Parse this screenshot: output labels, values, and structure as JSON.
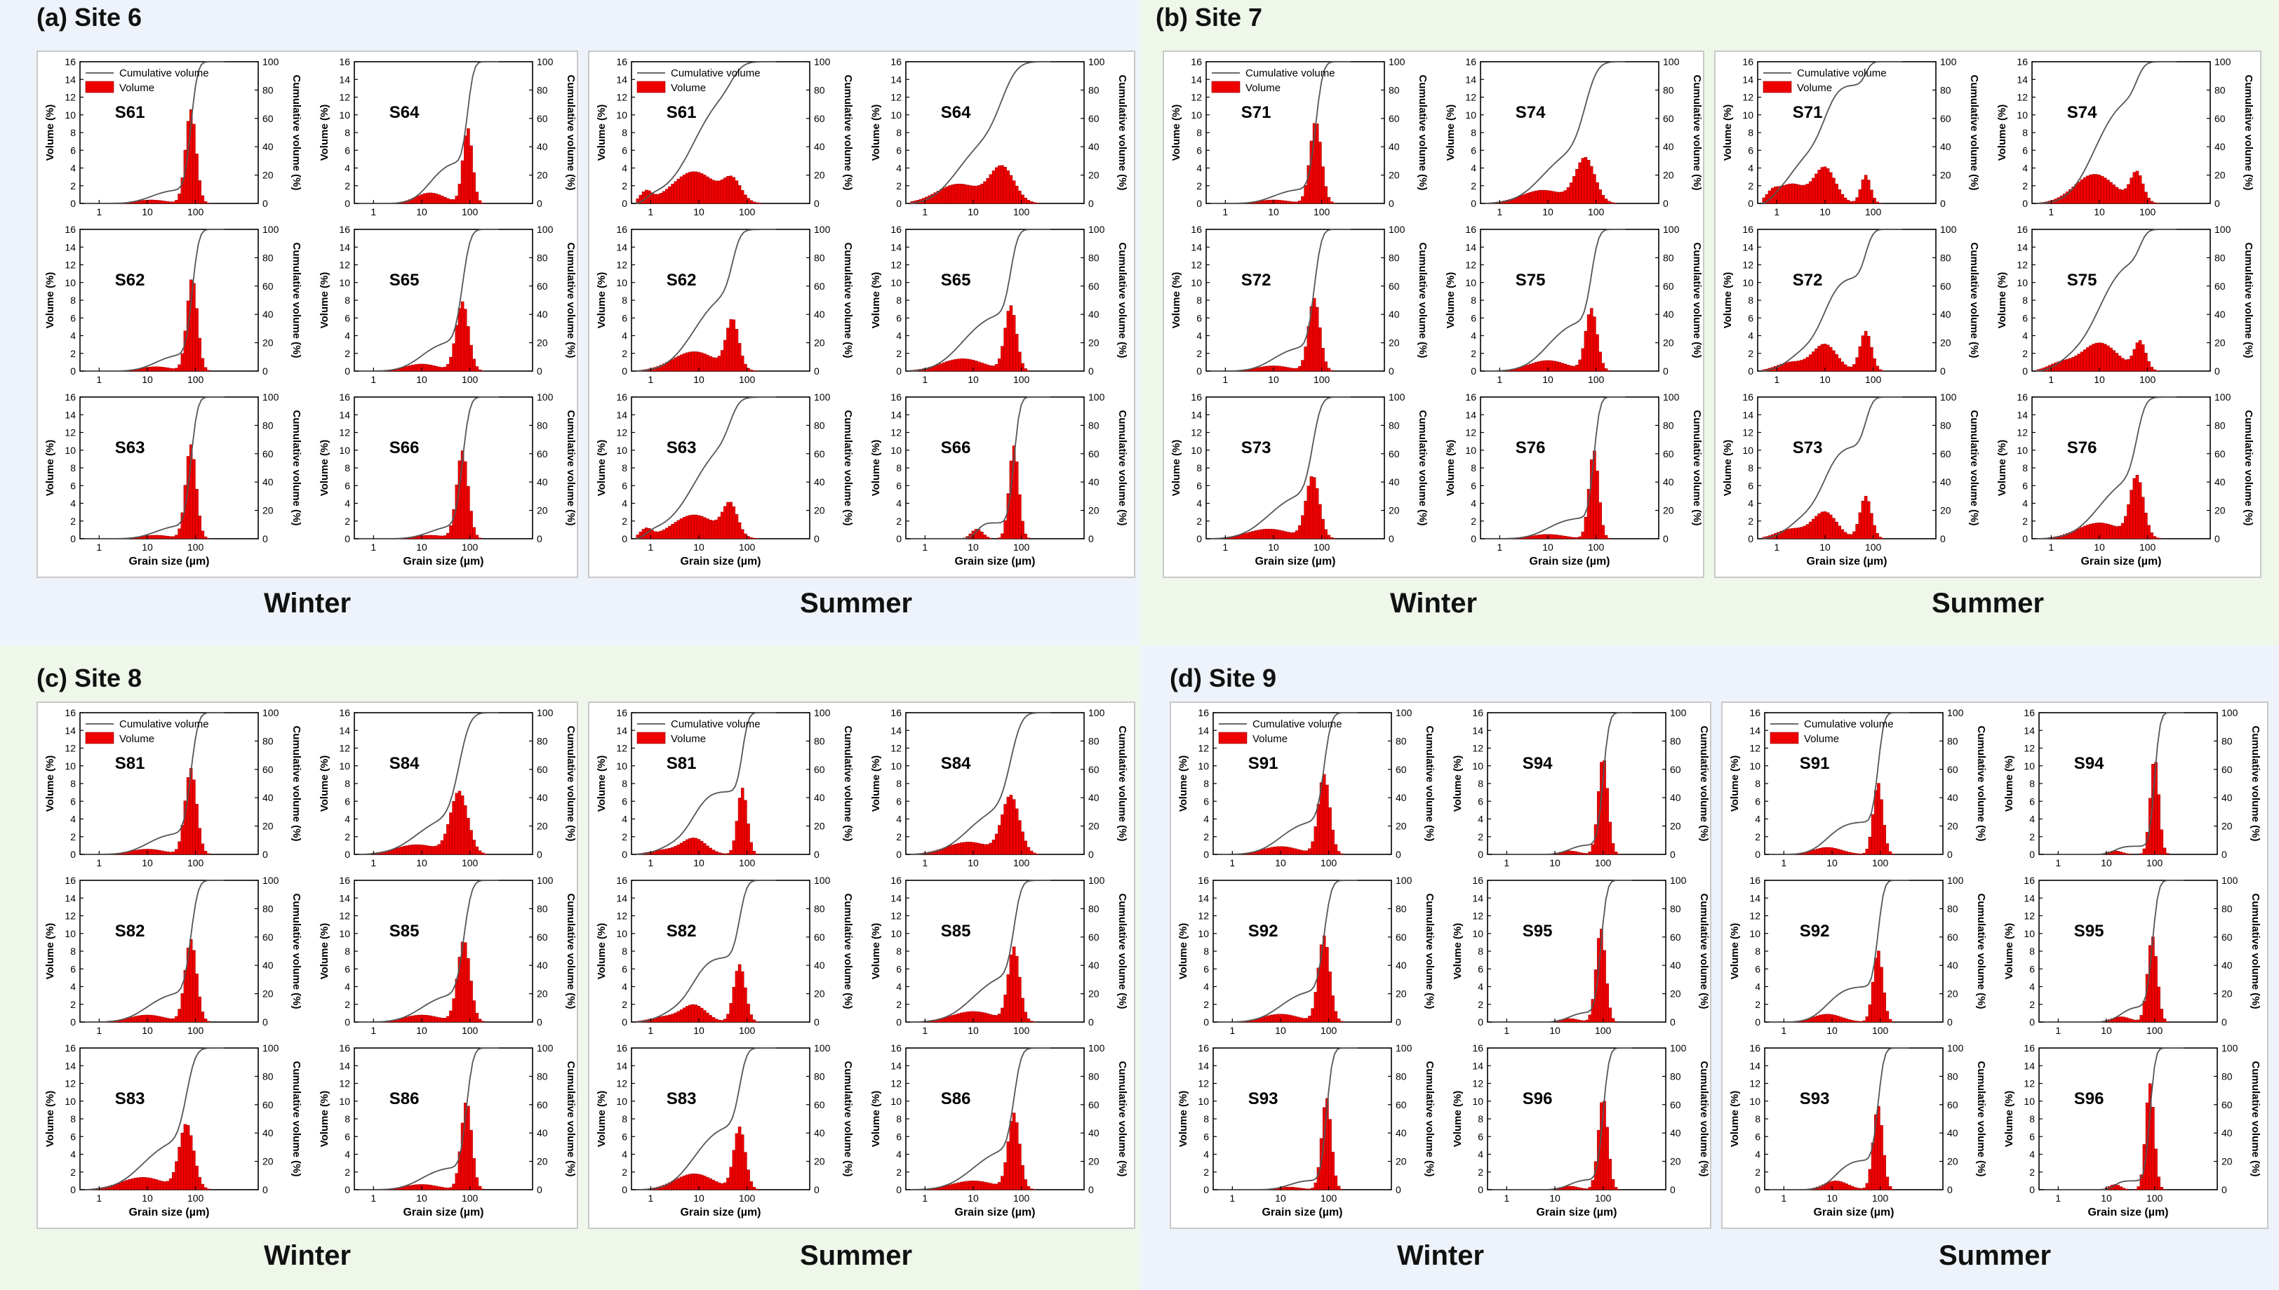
{
  "colors": {
    "bar": "#ee0000",
    "line": "#555555",
    "bg_blue": "#eef3fb",
    "bg_green": "#eff7ea"
  },
  "common": {
    "ylabel": "Volume (%)",
    "y2label": "Cumulative volume (%)",
    "xlabel": "Grain size (µm)",
    "legend_line": "Cumulative volume",
    "legend_bar": "Volume",
    "y_ticks": [
      "0",
      "2",
      "4",
      "6",
      "8",
      "10",
      "12",
      "14",
      "16"
    ],
    "y2_ticks": [
      "0",
      "20",
      "40",
      "60",
      "80",
      "100"
    ],
    "x_ticks": [
      "1",
      "10",
      "100"
    ]
  },
  "quadrants": [
    {
      "title": "(a) Site 6",
      "winter_label": "Winter",
      "summer_label": "Summer"
    },
    {
      "title": "(b) Site 7",
      "winter_label": "Winter",
      "summer_label": "Summer"
    },
    {
      "title": "(c) Site 8",
      "winter_label": "Winter",
      "summer_label": "Summer"
    },
    {
      "title": "(d) Site 9",
      "winter_label": "Winter",
      "summer_label": "Summer"
    }
  ],
  "chart_data": {
    "type": "bar",
    "description_x": "log10 grain size, 0.4 to 2000 µm",
    "xlim": [
      0.4,
      2000
    ],
    "ylim": [
      0,
      16
    ],
    "y2lim": [
      0,
      100
    ],
    "series_note": "each panel: Volume (bars, %) and Cumulative volume (line, %), modes in µm",
    "panels": [
      {
        "site": "6",
        "season": "winter",
        "label": "S61",
        "modes": [
          {
            "c": 80,
            "w": 0.11,
            "h": 10.6
          },
          {
            "c": 12,
            "w": 0.32,
            "h": 0.4
          }
        ]
      },
      {
        "site": "6",
        "season": "winter",
        "label": "S64",
        "modes": [
          {
            "c": 90,
            "w": 0.1,
            "h": 8.5
          },
          {
            "c": 15,
            "w": 0.3,
            "h": 1.2
          }
        ]
      },
      {
        "site": "6",
        "season": "winter",
        "label": "S62",
        "modes": [
          {
            "c": 85,
            "w": 0.11,
            "h": 10.5
          },
          {
            "c": 15,
            "w": 0.32,
            "h": 0.5
          }
        ]
      },
      {
        "site": "6",
        "season": "winter",
        "label": "S65",
        "modes": [
          {
            "c": 70,
            "w": 0.13,
            "h": 7.8
          },
          {
            "c": 10,
            "w": 0.35,
            "h": 0.8
          }
        ]
      },
      {
        "site": "6",
        "season": "winter",
        "label": "S63",
        "modes": [
          {
            "c": 80,
            "w": 0.11,
            "h": 10.6
          },
          {
            "c": 15,
            "w": 0.32,
            "h": 0.4
          }
        ]
      },
      {
        "site": "6",
        "season": "winter",
        "label": "S66",
        "modes": [
          {
            "c": 70,
            "w": 0.12,
            "h": 9.9
          },
          {
            "c": 15,
            "w": 0.32,
            "h": 0.4
          }
        ]
      },
      {
        "site": "6",
        "season": "summer",
        "label": "S61",
        "modes": [
          {
            "c": 8,
            "w": 0.45,
            "h": 3.6
          },
          {
            "c": 50,
            "w": 0.18,
            "h": 2.3
          },
          {
            "c": 0.8,
            "w": 0.12,
            "h": 1.2
          }
        ]
      },
      {
        "site": "6",
        "season": "summer",
        "label": "S64",
        "modes": [
          {
            "c": 40,
            "w": 0.25,
            "h": 4.0
          },
          {
            "c": 5,
            "w": 0.45,
            "h": 2.2
          }
        ]
      },
      {
        "site": "6",
        "season": "summer",
        "label": "S62",
        "modes": [
          {
            "c": 50,
            "w": 0.13,
            "h": 5.5
          },
          {
            "c": 8,
            "w": 0.45,
            "h": 2.2
          }
        ]
      },
      {
        "site": "6",
        "season": "summer",
        "label": "S65",
        "modes": [
          {
            "c": 60,
            "w": 0.12,
            "h": 7.3
          },
          {
            "c": 6,
            "w": 0.45,
            "h": 1.4
          }
        ]
      },
      {
        "site": "6",
        "season": "summer",
        "label": "S63",
        "modes": [
          {
            "c": 45,
            "w": 0.15,
            "h": 3.5
          },
          {
            "c": 8,
            "w": 0.45,
            "h": 2.7
          },
          {
            "c": 0.8,
            "w": 0.12,
            "h": 1.0
          }
        ]
      },
      {
        "site": "6",
        "season": "summer",
        "label": "S66",
        "modes": [
          {
            "c": 70,
            "w": 0.1,
            "h": 10.5
          },
          {
            "c": 12,
            "w": 0.12,
            "h": 1.1
          }
        ]
      },
      {
        "site": "7",
        "season": "winter",
        "label": "S71",
        "modes": [
          {
            "c": 75,
            "w": 0.12,
            "h": 9.3
          },
          {
            "c": 10,
            "w": 0.32,
            "h": 0.4
          }
        ]
      },
      {
        "site": "7",
        "season": "winter",
        "label": "S74",
        "modes": [
          {
            "c": 60,
            "w": 0.2,
            "h": 5.0
          },
          {
            "c": 8,
            "w": 0.45,
            "h": 1.5
          }
        ]
      },
      {
        "site": "7",
        "season": "winter",
        "label": "S72",
        "modes": [
          {
            "c": 70,
            "w": 0.12,
            "h": 8.2
          },
          {
            "c": 10,
            "w": 0.35,
            "h": 0.6
          }
        ]
      },
      {
        "site": "7",
        "season": "winter",
        "label": "S75",
        "modes": [
          {
            "c": 80,
            "w": 0.12,
            "h": 7.0
          },
          {
            "c": 10,
            "w": 0.4,
            "h": 1.2
          }
        ]
      },
      {
        "site": "7",
        "season": "winter",
        "label": "S73",
        "modes": [
          {
            "c": 65,
            "w": 0.14,
            "h": 7.0
          },
          {
            "c": 8,
            "w": 0.45,
            "h": 1.1
          }
        ]
      },
      {
        "site": "7",
        "season": "winter",
        "label": "S76",
        "modes": [
          {
            "c": 90,
            "w": 0.1,
            "h": 10.0
          },
          {
            "c": 10,
            "w": 0.35,
            "h": 0.5
          }
        ]
      },
      {
        "site": "7",
        "season": "summer",
        "label": "S71",
        "modes": [
          {
            "c": 10,
            "w": 0.22,
            "h": 4.0
          },
          {
            "c": 70,
            "w": 0.1,
            "h": 3.2
          },
          {
            "c": 2,
            "w": 0.3,
            "h": 2.2
          },
          {
            "c": 0.8,
            "w": 0.12,
            "h": 0.8
          }
        ]
      },
      {
        "site": "7",
        "season": "summer",
        "label": "S74",
        "modes": [
          {
            "c": 8,
            "w": 0.42,
            "h": 3.3
          },
          {
            "c": 60,
            "w": 0.13,
            "h": 3.3
          }
        ]
      },
      {
        "site": "7",
        "season": "summer",
        "label": "S72",
        "modes": [
          {
            "c": 10,
            "w": 0.25,
            "h": 3.0
          },
          {
            "c": 70,
            "w": 0.12,
            "h": 4.5
          },
          {
            "c": 2,
            "w": 0.3,
            "h": 1.0
          }
        ]
      },
      {
        "site": "7",
        "season": "summer",
        "label": "S75",
        "modes": [
          {
            "c": 10,
            "w": 0.38,
            "h": 3.2
          },
          {
            "c": 70,
            "w": 0.12,
            "h": 3.2
          },
          {
            "c": 1.5,
            "w": 0.25,
            "h": 0.8
          }
        ]
      },
      {
        "site": "7",
        "season": "summer",
        "label": "S73",
        "modes": [
          {
            "c": 10,
            "w": 0.25,
            "h": 3.0
          },
          {
            "c": 70,
            "w": 0.12,
            "h": 4.8
          },
          {
            "c": 2,
            "w": 0.3,
            "h": 1.1
          }
        ]
      },
      {
        "site": "7",
        "season": "summer",
        "label": "S76",
        "modes": [
          {
            "c": 60,
            "w": 0.14,
            "h": 6.8
          },
          {
            "c": 10,
            "w": 0.45,
            "h": 1.8
          }
        ]
      },
      {
        "site": "8",
        "season": "winter",
        "label": "S81",
        "modes": [
          {
            "c": 80,
            "w": 0.12,
            "h": 9.7
          },
          {
            "c": 10,
            "w": 0.35,
            "h": 0.6
          }
        ]
      },
      {
        "site": "8",
        "season": "winter",
        "label": "S84",
        "modes": [
          {
            "c": 60,
            "w": 0.18,
            "h": 7.0
          },
          {
            "c": 8,
            "w": 0.45,
            "h": 1.1
          }
        ]
      },
      {
        "site": "8",
        "season": "winter",
        "label": "S82",
        "modes": [
          {
            "c": 80,
            "w": 0.12,
            "h": 9.3
          },
          {
            "c": 10,
            "w": 0.38,
            "h": 0.8
          }
        ]
      },
      {
        "site": "8",
        "season": "winter",
        "label": "S85",
        "modes": [
          {
            "c": 75,
            "w": 0.13,
            "h": 9.2
          },
          {
            "c": 10,
            "w": 0.38,
            "h": 0.8
          }
        ]
      },
      {
        "site": "8",
        "season": "winter",
        "label": "S83",
        "modes": [
          {
            "c": 65,
            "w": 0.15,
            "h": 7.3
          },
          {
            "c": 8,
            "w": 0.45,
            "h": 1.4
          }
        ]
      },
      {
        "site": "8",
        "season": "winter",
        "label": "S86",
        "modes": [
          {
            "c": 85,
            "w": 0.11,
            "h": 10.0
          },
          {
            "c": 10,
            "w": 0.35,
            "h": 0.6
          }
        ]
      },
      {
        "site": "8",
        "season": "summer",
        "label": "S81",
        "modes": [
          {
            "c": 8,
            "w": 0.25,
            "h": 1.8
          },
          {
            "c": 80,
            "w": 0.1,
            "h": 7.5
          },
          {
            "c": 2,
            "w": 0.3,
            "h": 0.5
          }
        ]
      },
      {
        "site": "8",
        "season": "summer",
        "label": "S84",
        "modes": [
          {
            "c": 60,
            "w": 0.18,
            "h": 6.5
          },
          {
            "c": 8,
            "w": 0.45,
            "h": 1.4
          }
        ]
      },
      {
        "site": "8",
        "season": "summer",
        "label": "S82",
        "modes": [
          {
            "c": 8,
            "w": 0.25,
            "h": 1.9
          },
          {
            "c": 70,
            "w": 0.12,
            "h": 6.5
          },
          {
            "c": 2,
            "w": 0.3,
            "h": 0.6
          }
        ]
      },
      {
        "site": "8",
        "season": "summer",
        "label": "S85",
        "modes": [
          {
            "c": 70,
            "w": 0.12,
            "h": 8.3
          },
          {
            "c": 10,
            "w": 0.45,
            "h": 1.2
          }
        ]
      },
      {
        "site": "8",
        "season": "summer",
        "label": "S83",
        "modes": [
          {
            "c": 70,
            "w": 0.12,
            "h": 7.0
          },
          {
            "c": 8,
            "w": 0.4,
            "h": 1.8
          }
        ]
      },
      {
        "site": "8",
        "season": "summer",
        "label": "S86",
        "modes": [
          {
            "c": 70,
            "w": 0.12,
            "h": 8.5
          },
          {
            "c": 10,
            "w": 0.45,
            "h": 1.0
          }
        ]
      },
      {
        "site": "9",
        "season": "winter",
        "label": "S91",
        "modes": [
          {
            "c": 80,
            "w": 0.12,
            "h": 9.0
          },
          {
            "c": 10,
            "w": 0.38,
            "h": 0.9
          }
        ]
      },
      {
        "site": "9",
        "season": "winter",
        "label": "S94",
        "modes": [
          {
            "c": 100,
            "w": 0.1,
            "h": 11.0
          },
          {
            "c": 20,
            "w": 0.2,
            "h": 0.4
          }
        ]
      },
      {
        "site": "9",
        "season": "winter",
        "label": "S92",
        "modes": [
          {
            "c": 80,
            "w": 0.12,
            "h": 9.7
          },
          {
            "c": 10,
            "w": 0.38,
            "h": 0.9
          }
        ]
      },
      {
        "site": "9",
        "season": "winter",
        "label": "S95",
        "modes": [
          {
            "c": 90,
            "w": 0.1,
            "h": 10.6
          },
          {
            "c": 20,
            "w": 0.2,
            "h": 0.4
          }
        ]
      },
      {
        "site": "9",
        "season": "winter",
        "label": "S93",
        "modes": [
          {
            "c": 90,
            "w": 0.1,
            "h": 10.4
          },
          {
            "c": 15,
            "w": 0.25,
            "h": 0.3
          }
        ]
      },
      {
        "site": "9",
        "season": "winter",
        "label": "S96",
        "modes": [
          {
            "c": 100,
            "w": 0.1,
            "h": 10.4
          },
          {
            "c": 20,
            "w": 0.2,
            "h": 0.4
          }
        ]
      },
      {
        "site": "9",
        "season": "summer",
        "label": "S91",
        "modes": [
          {
            "c": 90,
            "w": 0.1,
            "h": 8.1
          },
          {
            "c": 8,
            "w": 0.3,
            "h": 0.8
          }
        ]
      },
      {
        "site": "9",
        "season": "summer",
        "label": "S94",
        "modes": [
          {
            "c": 100,
            "w": 0.09,
            "h": 10.9
          },
          {
            "c": 15,
            "w": 0.15,
            "h": 0.4
          }
        ]
      },
      {
        "site": "9",
        "season": "summer",
        "label": "S92",
        "modes": [
          {
            "c": 90,
            "w": 0.1,
            "h": 8.1
          },
          {
            "c": 8,
            "w": 0.3,
            "h": 0.9
          }
        ]
      },
      {
        "site": "9",
        "season": "summer",
        "label": "S95",
        "modes": [
          {
            "c": 90,
            "w": 0.1,
            "h": 9.7
          },
          {
            "c": 20,
            "w": 0.2,
            "h": 0.6
          }
        ]
      },
      {
        "site": "9",
        "season": "summer",
        "label": "S93",
        "modes": [
          {
            "c": 90,
            "w": 0.1,
            "h": 9.5
          },
          {
            "c": 12,
            "w": 0.25,
            "h": 1.0
          }
        ]
      },
      {
        "site": "9",
        "season": "summer",
        "label": "S96",
        "modes": [
          {
            "c": 80,
            "w": 0.09,
            "h": 12.0
          },
          {
            "c": 15,
            "w": 0.12,
            "h": 0.6
          }
        ]
      }
    ]
  }
}
